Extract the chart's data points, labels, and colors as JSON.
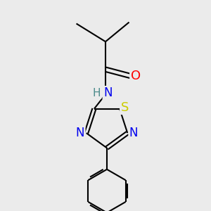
{
  "bg_color": "#ebebeb",
  "bond_color": "#000000",
  "atom_colors": {
    "O": "#ff0000",
    "N": "#0000ee",
    "S": "#cccc00",
    "H": "#4a8a8a",
    "C": "#000000"
  },
  "bond_width": 1.5,
  "font_size": 11
}
